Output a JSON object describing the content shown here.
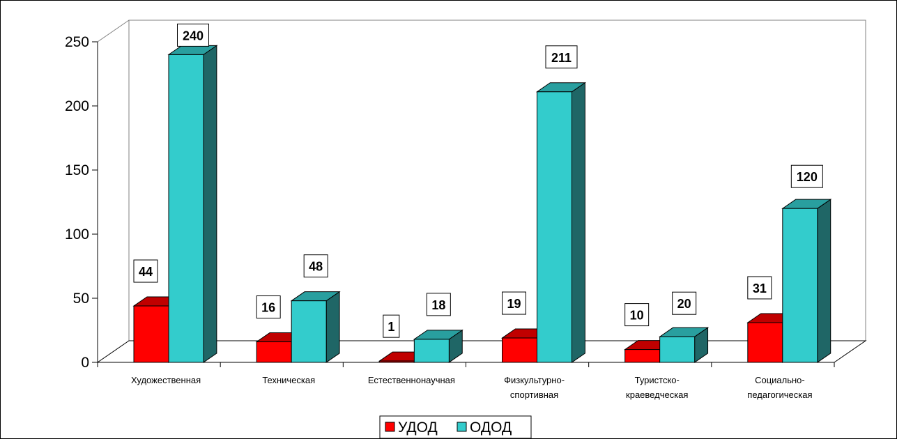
{
  "chart_data": {
    "type": "bar",
    "categories": [
      "Художественная",
      "Техническая",
      "Естественнонаучная",
      "Физкультурно-спортивная",
      "Туристско-краеведческая",
      "Социально-педагогическая"
    ],
    "category_lines": [
      [
        "Художественная"
      ],
      [
        "Техническая"
      ],
      [
        "Естественнонаучная"
      ],
      [
        "Физкультурно-",
        "спортивная"
      ],
      [
        "Туристско-",
        "краеведческая"
      ],
      [
        "Социально-",
        "педагогическая"
      ]
    ],
    "series": [
      {
        "name": "УДОД",
        "values": [
          44,
          16,
          1,
          19,
          10,
          31
        ],
        "labels": [
          "44",
          "16",
          "1",
          "19",
          "10",
          "31"
        ],
        "color": "#ff0000",
        "top_color": "#c00000",
        "side_color": "#990000"
      },
      {
        "name": "ОДОД",
        "values": [
          240,
          48,
          18,
          211,
          20,
          120
        ],
        "labels": [
          "240",
          "48",
          "18",
          "211",
          "20",
          "120"
        ],
        "color": "#33cccc",
        "top_color": "#299f9f",
        "side_color": "#1f6666"
      }
    ],
    "yticks": [
      "0",
      "50",
      "100",
      "150",
      "200",
      "250"
    ],
    "ylim": [
      0,
      250
    ],
    "grid": false,
    "legend_position": "bottom",
    "three_d": true
  }
}
